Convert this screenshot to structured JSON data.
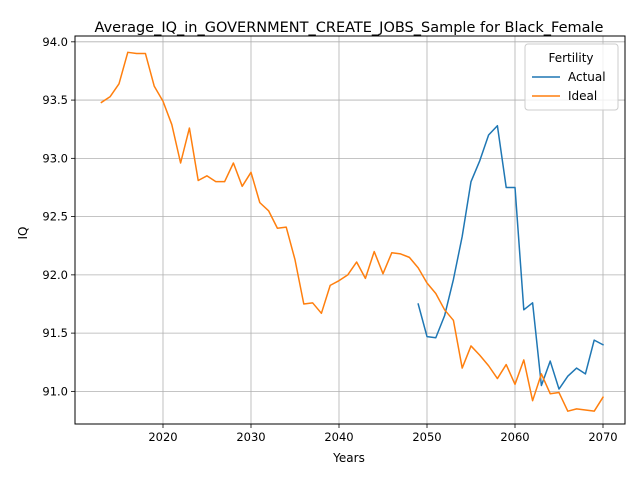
{
  "chart_data": {
    "type": "line",
    "title": "Average_IQ_in_GOVERNMENT_CREATE_JOBS_Sample for Black_Female",
    "xlabel": "Years",
    "ylabel": "IQ",
    "xlim": [
      2010,
      2072.5
    ],
    "ylim": [
      90.72,
      94.05
    ],
    "xticks": [
      2020,
      2030,
      2040,
      2050,
      2060,
      2070
    ],
    "yticks": [
      91.0,
      91.5,
      92.0,
      92.5,
      93.0,
      93.5,
      94.0
    ],
    "ytick_labels": [
      "91.0",
      "91.5",
      "92.0",
      "92.5",
      "93.0",
      "93.5",
      "94.0"
    ],
    "grid": true,
    "legend": {
      "title": "Fertility",
      "placement": "top-right"
    },
    "series": [
      {
        "name": "Actual",
        "color": "#1f77b4",
        "x": [
          2049,
          2050,
          2051,
          2052,
          2053,
          2054,
          2055,
          2056,
          2057,
          2058,
          2059,
          2060,
          2061,
          2062,
          2063,
          2064,
          2065,
          2066,
          2067,
          2068,
          2069,
          2070
        ],
        "y": [
          91.75,
          91.47,
          91.46,
          91.65,
          91.96,
          92.33,
          92.8,
          92.98,
          93.2,
          93.28,
          92.75,
          92.75,
          91.7,
          91.76,
          91.05,
          91.26,
          91.02,
          91.13,
          91.2,
          91.15,
          91.44,
          91.4
        ]
      },
      {
        "name": "Ideal",
        "color": "#ff7f0e",
        "x": [
          2013,
          2014,
          2015,
          2016,
          2017,
          2018,
          2019,
          2020,
          2021,
          2022,
          2023,
          2024,
          2025,
          2026,
          2027,
          2028,
          2029,
          2030,
          2031,
          2032,
          2033,
          2034,
          2035,
          2036,
          2037,
          2038,
          2039,
          2040,
          2041,
          2042,
          2043,
          2044,
          2045,
          2046,
          2047,
          2048,
          2049,
          2050,
          2051,
          2052,
          2053,
          2054,
          2055,
          2056,
          2057,
          2058,
          2059,
          2060,
          2061,
          2062,
          2063,
          2064,
          2065,
          2066,
          2067,
          2068,
          2069,
          2070
        ],
        "y": [
          93.48,
          93.53,
          93.64,
          93.91,
          93.9,
          93.9,
          93.62,
          93.49,
          93.29,
          92.96,
          93.26,
          92.81,
          92.85,
          92.8,
          92.8,
          92.96,
          92.76,
          92.88,
          92.62,
          92.55,
          92.4,
          92.41,
          92.13,
          91.75,
          91.76,
          91.67,
          91.91,
          91.95,
          92.0,
          92.11,
          91.97,
          92.2,
          92.01,
          92.19,
          92.18,
          92.15,
          92.06,
          91.93,
          91.84,
          91.7,
          91.61,
          91.2,
          91.39,
          91.31,
          91.22,
          91.11,
          91.23,
          91.06,
          91.27,
          90.92,
          91.15,
          90.98,
          90.99,
          90.83,
          90.85,
          90.84,
          90.83,
          90.95
        ]
      }
    ]
  }
}
